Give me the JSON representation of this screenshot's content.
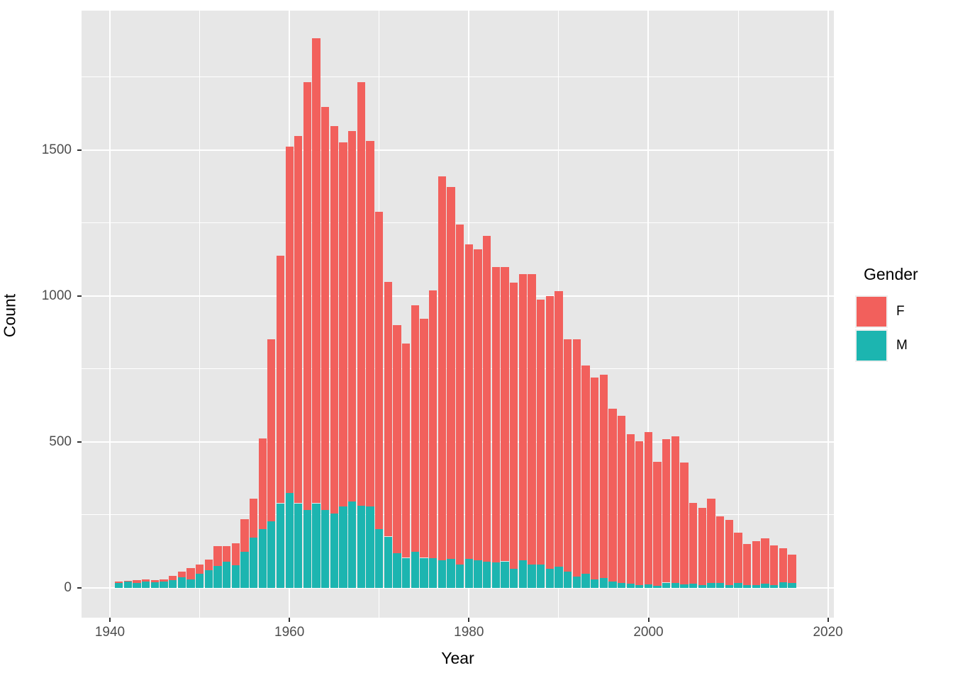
{
  "figure": {
    "legend": {
      "title": "Gender",
      "entries": [
        {
          "label": "F",
          "color": "#F2605C"
        },
        {
          "label": "M",
          "color": "#1CB5B0"
        }
      ]
    }
  },
  "chart_data": {
    "type": "bar",
    "stacked": true,
    "title": "",
    "xlabel": "Year",
    "ylabel": "Count",
    "legend_title": "Gender",
    "legend_position": "right",
    "grid": true,
    "colors": {
      "panel_background": "#E7E7E7",
      "gridline": "#FFFFFF",
      "tick_label": "#4D4D4D",
      "axis_title": "#000000",
      "F": "#F2605C",
      "M": "#1CB5B0"
    },
    "xlim": [
      1936.84,
      2020.66
    ],
    "ylim": [
      -102,
      1978
    ],
    "x_major_ticks": [
      1940,
      1960,
      1980,
      2000,
      2020
    ],
    "x_minor_ticks": [
      1950,
      1970,
      1990,
      2010
    ],
    "y_major_ticks": [
      0,
      500,
      1000,
      1500
    ],
    "y_minor_ticks": [
      250,
      750,
      1250,
      1750
    ],
    "x": [
      1941,
      1942,
      1943,
      1944,
      1945,
      1946,
      1947,
      1948,
      1949,
      1950,
      1951,
      1952,
      1953,
      1954,
      1955,
      1956,
      1957,
      1958,
      1959,
      1960,
      1961,
      1962,
      1963,
      1964,
      1965,
      1966,
      1967,
      1968,
      1969,
      1970,
      1971,
      1972,
      1973,
      1974,
      1975,
      1976,
      1977,
      1978,
      1979,
      1980,
      1981,
      1982,
      1983,
      1984,
      1985,
      1986,
      1987,
      1988,
      1989,
      1990,
      1991,
      1992,
      1993,
      1994,
      1995,
      1996,
      1997,
      1998,
      1999,
      2000,
      2001,
      2002,
      2003,
      2004,
      2005,
      2006,
      2007,
      2008,
      2009,
      2010,
      2011,
      2012,
      2013,
      2014,
      2015,
      2016
    ],
    "series": [
      {
        "name": "M",
        "color": "#1CB5B0",
        "values": [
          18,
          22,
          16,
          22,
          19,
          22,
          27,
          36,
          30,
          48,
          61,
          75,
          89,
          78,
          123,
          172,
          201,
          228,
          290,
          325,
          290,
          267,
          290,
          267,
          255,
          280,
          295,
          282,
          278,
          202,
          176,
          119,
          103,
          124,
          103,
          101,
          95,
          99,
          81,
          99,
          95,
          89,
          87,
          91,
          66,
          95,
          81,
          79,
          66,
          74,
          55,
          39,
          49,
          30,
          34,
          22,
          18,
          14,
          10,
          12,
          8,
          18,
          16,
          12,
          15,
          10,
          16,
          18,
          10,
          16,
          9,
          10,
          15,
          9,
          20,
          16
        ]
      },
      {
        "name": "F",
        "color": "#F2605C",
        "values": [
          5,
          2,
          10,
          8,
          8,
          8,
          15,
          21,
          39,
          32,
          36,
          68,
          54,
          74,
          113,
          135,
          311,
          624,
          848,
          1187,
          1259,
          1466,
          1594,
          1381,
          1328,
          1247,
          1270,
          1451,
          1254,
          1087,
          872,
          781,
          734,
          844,
          819,
          918,
          1315,
          1274,
          1165,
          1078,
          1066,
          1117,
          1013,
          1009,
          980,
          980,
          994,
          909,
          934,
          943,
          797,
          813,
          713,
          690,
          696,
          592,
          572,
          513,
          493,
          522,
          424,
          492,
          503,
          418,
          277,
          265,
          289,
          227,
          223,
          174,
          141,
          150,
          155,
          136,
          115,
          97
        ]
      }
    ]
  }
}
